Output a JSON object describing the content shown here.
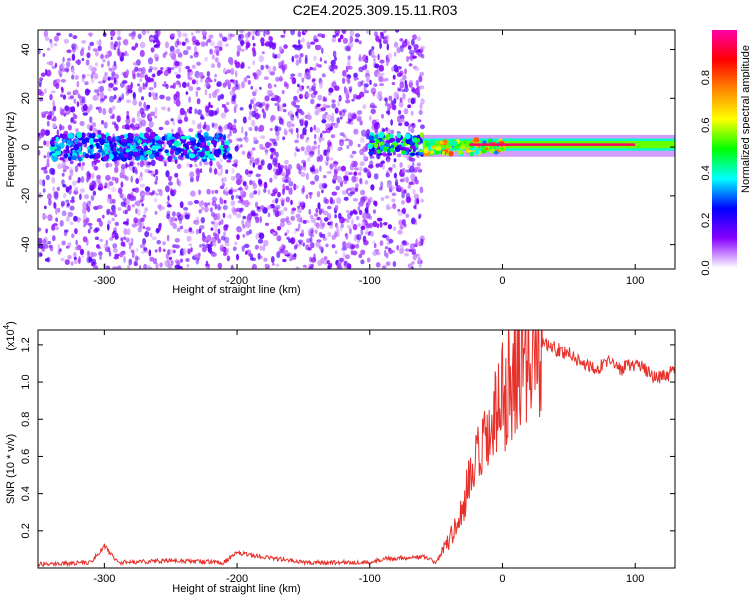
{
  "title": "C2E4.2025.309.15.11.R03",
  "chart_data": [
    {
      "type": "heatmap",
      "xlabel": "Height of straight line (km)",
      "ylabel": "Frequency (Hz)",
      "xlim": [
        -350,
        130
      ],
      "ylim": [
        -50,
        48
      ],
      "xticks": [
        -300,
        -200,
        -100,
        0,
        100
      ],
      "yticks": [
        -40,
        -20,
        0,
        20,
        40
      ],
      "grid": false,
      "colorbar": {
        "label": "Normalized spectral amplitude",
        "range": [
          0,
          1
        ],
        "ticks": [
          "0.0",
          "0.2",
          "0.4",
          "0.6",
          "0.8"
        ],
        "colors": [
          "#ffffff",
          "#8800ff",
          "#0000ff",
          "#00ffff",
          "#00ff00",
          "#ffff00",
          "#ff8800",
          "#ff0000",
          "#ff00aa"
        ]
      },
      "regions": [
        {
          "x": [
            -350,
            -60
          ],
          "freq": [
            -50,
            48
          ],
          "description_level": 0.1
        },
        {
          "x": [
            -340,
            -205
          ],
          "freq": [
            -5,
            5
          ],
          "description_level": 0.35
        },
        {
          "x": [
            -100,
            -60
          ],
          "freq": [
            -3,
            5
          ],
          "description_level": 0.4
        },
        {
          "x": [
            -60,
            130
          ],
          "freq": [
            -3,
            4
          ],
          "description_level": 0.6
        }
      ]
    },
    {
      "type": "line",
      "xlabel": "Height of straight line (km)",
      "ylabel": "SNR (10 * v/v)",
      "yscale_label": "(x10",
      "yscale_exp": "4",
      "yscale_close": ")",
      "xlim": [
        -350,
        130
      ],
      "ylim": [
        0,
        1.28
      ],
      "xticks": [
        -300,
        -200,
        -100,
        0,
        100
      ],
      "yticks": [
        "0.2",
        "0.4",
        "0.6",
        "0.8",
        "1.0",
        "1.2"
      ],
      "color": "#e8302a",
      "grid": false,
      "x": [
        -350,
        -310,
        -300,
        -290,
        -250,
        -210,
        -200,
        -150,
        -100,
        -90,
        -60,
        -50,
        -45,
        -40,
        -35,
        -30,
        -25,
        -20,
        -15,
        -10,
        -5,
        0,
        5,
        10,
        15,
        20,
        25,
        30,
        35,
        40,
        45,
        50,
        60,
        70,
        80,
        90,
        100,
        110,
        120,
        130
      ],
      "y": [
        0.02,
        0.03,
        0.12,
        0.03,
        0.04,
        0.03,
        0.08,
        0.03,
        0.03,
        0.05,
        0.06,
        0.03,
        0.1,
        0.15,
        0.22,
        0.32,
        0.45,
        0.55,
        0.62,
        0.7,
        0.8,
        0.9,
        1.02,
        1.1,
        1.15,
        1.18,
        1.2,
        1.22,
        1.2,
        1.18,
        1.17,
        1.15,
        1.1,
        1.08,
        1.1,
        1.07,
        1.1,
        1.05,
        1.02,
        1.06
      ]
    }
  ]
}
